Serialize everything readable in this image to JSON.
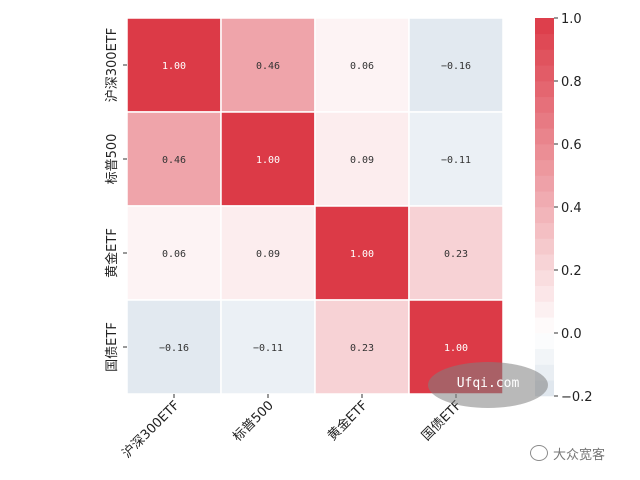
{
  "chart_data": {
    "type": "heatmap",
    "labels": [
      "沪深300ETF",
      "标普500",
      "黄金ETF",
      "国债ETF"
    ],
    "values": [
      [
        1.0,
        0.46,
        0.06,
        -0.16
      ],
      [
        0.46,
        1.0,
        0.09,
        -0.11
      ],
      [
        0.06,
        0.09,
        1.0,
        0.23
      ],
      [
        -0.16,
        -0.11,
        0.23,
        1.0
      ]
    ],
    "cell_labels": [
      [
        "1.00",
        "0.46",
        "0.06",
        "−0.16"
      ],
      [
        "0.46",
        "1.00",
        "0.09",
        "−0.11"
      ],
      [
        "0.06",
        "0.09",
        "1.00",
        "0.23"
      ],
      [
        "−0.16",
        "−0.11",
        "0.23",
        "1.00"
      ]
    ],
    "colorbar": {
      "range": [
        -0.2,
        1.0
      ],
      "ticks": [
        1.0,
        0.8,
        0.6,
        0.4,
        0.2,
        0.0,
        -0.2
      ],
      "tick_labels": [
        "1.0",
        "0.8",
        "0.6",
        "0.4",
        "0.2",
        "0.0",
        "−0.2"
      ],
      "negative_color": "#dbe4ec",
      "zero_color": "#ffffff",
      "positive_color": "#dc3a47"
    },
    "grid": false,
    "legend": "colorbar-right"
  },
  "watermark": {
    "text": "Ufqi.com"
  },
  "brand": {
    "icon": "wechat-icon",
    "text": "大众宽客"
  }
}
